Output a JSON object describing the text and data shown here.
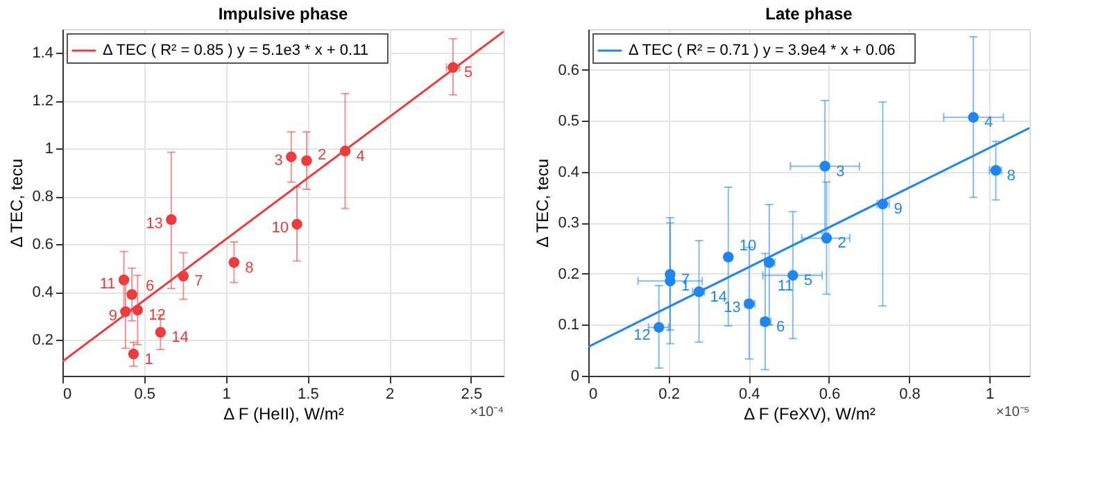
{
  "chart_data": [
    {
      "type": "scatter",
      "title": "Impulsive phase",
      "xlabel": "Δ F (HeII), W/m²",
      "ylabel": "Δ TEC, tecu",
      "xlim": [
        0,
        2.7
      ],
      "ylim": [
        0.05,
        1.5
      ],
      "xticks": [
        0,
        0.5,
        1,
        1.5,
        2,
        2.5
      ],
      "yticks": [
        0.2,
        0.4,
        0.6,
        0.8,
        1,
        1.2,
        1.4
      ],
      "grid": true,
      "legend": "top left",
      "series": [
        {
          "type": "scatter",
          "marker": "circle",
          "color": "#ee3b3b",
          "x": [
            0.435,
            1.494,
            1.4,
            1.73,
            2.39,
            0.425,
            0.74,
            1.05,
            0.386,
            1.435,
            0.376,
            0.46,
            0.666,
            0.6
          ],
          "values": [
            0.141,
            0.95,
            0.966,
            0.99,
            1.34,
            0.39,
            0.467,
            0.524,
            0.318,
            0.684,
            0.451,
            0.325,
            0.703,
            0.232
          ],
          "errors": [
            [
              0.09,
              0.19
            ],
            [
              0.83,
              1.07
            ],
            [
              0.86,
              1.07
            ],
            [
              0.75,
              1.23
            ],
            [
              1.225,
              1.46
            ],
            [
              0.28,
              0.5
            ],
            [
              0.37,
              0.565
            ],
            [
              0.44,
              0.61
            ],
            [
              0.165,
              0.455
            ],
            [
              0.53,
              0.84
            ],
            [
              0.32,
              0.57
            ],
            [
              0.18,
              0.47
            ],
            [
              0.415,
              0.985
            ],
            [
              0.16,
              0.305
            ]
          ],
          "xerrors": [
            null,
            null,
            null,
            null,
            [
              2.35,
              2.43
            ],
            null,
            null,
            null,
            null,
            null,
            null,
            null,
            null,
            null
          ]
        },
        {
          "type": "line",
          "name": "Δ TEC  ( R² = 0.85 )   y = 5.1e3 * x + 0.11",
          "color": "#ee3b3b",
          "x": [
            0,
            2.7
          ],
          "values": [
            0.11,
            1.49
          ]
        }
      ],
      "annotations": [
        {
          "text": "1",
          "x": 0.435,
          "y": 0.141
        },
        {
          "text": "2",
          "x": 1.494,
          "y": 0.95
        },
        {
          "text": "3",
          "x": 1.4,
          "y": 0.966
        },
        {
          "text": "4",
          "x": 1.73,
          "y": 0.99
        },
        {
          "text": "5",
          "x": 2.39,
          "y": 1.34
        },
        {
          "text": "6",
          "x": 0.425,
          "y": 0.39
        },
        {
          "text": "7",
          "x": 0.74,
          "y": 0.467
        },
        {
          "text": "8",
          "x": 1.05,
          "y": 0.524
        },
        {
          "text": "9",
          "x": 0.386,
          "y": 0.318
        },
        {
          "text": "10",
          "x": 1.435,
          "y": 0.684
        },
        {
          "text": "11",
          "x": 0.376,
          "y": 0.451
        },
        {
          "text": "12",
          "x": 0.46,
          "y": 0.325
        },
        {
          "text": "13",
          "x": 0.666,
          "y": 0.703
        },
        {
          "text": "14",
          "x": 0.6,
          "y": 0.232
        },
        "×10⁻⁴"
      ]
    },
    {
      "type": "scatter",
      "title": "Late phase",
      "xlabel": "Δ F (FeXV), W/m²",
      "ylabel": "Δ TEC, tecu",
      "xlim": [
        0,
        1.1
      ],
      "ylim": [
        0,
        0.68
      ],
      "xticks": [
        0,
        0.2,
        0.4,
        0.6,
        0.8,
        1
      ],
      "yticks": [
        0,
        0.1,
        0.2,
        0.3,
        0.4,
        0.5,
        0.6
      ],
      "grid": true,
      "legend": "top left",
      "series": [
        {
          "type": "scatter",
          "marker": "circle",
          "color": "#1f85f0",
          "x": [
            0.204,
            0.594,
            0.59,
            0.96,
            0.51,
            0.441,
            0.204,
            1.016,
            0.734,
            0.349,
            0.451,
            0.176,
            0.401,
            0.276
          ],
          "values": [
            0.186,
            0.27,
            0.411,
            0.507,
            0.197,
            0.106,
            0.199,
            0.403,
            0.337,
            0.233,
            0.222,
            0.095,
            0.141,
            0.165
          ],
          "errors": [
            [
              0.063,
              0.3
            ],
            [
              0.16,
              0.38
            ],
            [
              0.28,
              0.54
            ],
            [
              0.35,
              0.665
            ],
            [
              0.073,
              0.322
            ],
            [
              0.012,
              0.24
            ],
            [
              0.09,
              0.31
            ],
            [
              0.345,
              0.46
            ],
            [
              0.137,
              0.537
            ],
            [
              0.098,
              0.37
            ],
            [
              0.1,
              0.336
            ],
            [
              0.015,
              0.177
            ],
            [
              0.033,
              0.252
            ],
            [
              0.066,
              0.265
            ]
          ],
          "xerrors": [
            [
              0.124,
              0.284
            ],
            [
              0.532,
              0.652
            ],
            [
              0.504,
              0.676
            ],
            [
              0.886,
              1.035
            ],
            [
              0.435,
              0.583
            ],
            [
              0.43,
              0.455
            ],
            null,
            [
              1.0,
              1.03
            ],
            [
              0.72,
              0.75
            ],
            null,
            [
              0.44,
              0.465
            ],
            [
              0.15,
              0.2
            ],
            [
              0.39,
              0.415
            ],
            [
              0.26,
              0.29
            ]
          ]
        },
        {
          "type": "line",
          "name": "Δ TEC  ( R² = 0.71 )   y = 3.9e4 * x + 0.06",
          "color": "#1f85f0",
          "x": [
            0,
            1.1
          ],
          "values": [
            0.057,
            0.486
          ]
        }
      ],
      "annotations": [
        {
          "text": "1",
          "x": 0.204,
          "y": 0.186
        },
        {
          "text": "2",
          "x": 0.594,
          "y": 0.27
        },
        {
          "text": "3",
          "x": 0.59,
          "y": 0.411
        },
        {
          "text": "4",
          "x": 0.96,
          "y": 0.507
        },
        {
          "text": "5",
          "x": 0.51,
          "y": 0.197
        },
        {
          "text": "6",
          "x": 0.441,
          "y": 0.106
        },
        {
          "text": "7",
          "x": 0.204,
          "y": 0.199
        },
        {
          "text": "8",
          "x": 1.016,
          "y": 0.403
        },
        {
          "text": "9",
          "x": 0.734,
          "y": 0.337
        },
        {
          "text": "10",
          "x": 0.349,
          "y": 0.233
        },
        {
          "text": "11",
          "x": 0.451,
          "y": 0.222
        },
        {
          "text": "12",
          "x": 0.176,
          "y": 0.095
        },
        {
          "text": "13",
          "x": 0.401,
          "y": 0.141
        },
        {
          "text": "14",
          "x": 0.276,
          "y": 0.165
        },
        "×10⁻⁵"
      ]
    }
  ]
}
